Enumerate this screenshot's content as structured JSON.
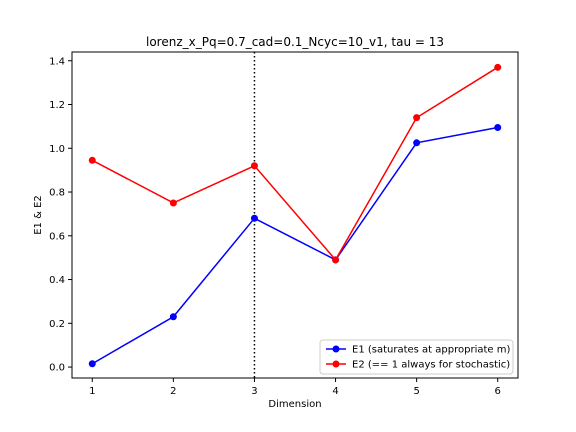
{
  "chart_data": {
    "type": "line",
    "title": "lorenz_x_Pq=0.7_cad=0.1_Ncyc=10_v1, tau = 13",
    "xlabel": "Dimension",
    "ylabel": "E1 & E2",
    "x": [
      1,
      2,
      3,
      4,
      5,
      6
    ],
    "xlim": [
      0.75,
      6.25
    ],
    "ylim": [
      -0.05,
      1.44
    ],
    "xticks": [
      1,
      2,
      3,
      4,
      5,
      6
    ],
    "yticks": [
      0.0,
      0.2,
      0.4,
      0.6,
      0.8,
      1.0,
      1.2,
      1.4
    ],
    "ytick_labels": [
      "0.0",
      "0.2",
      "0.4",
      "0.6",
      "0.8",
      "1.0",
      "1.2",
      "1.4"
    ],
    "vline": {
      "x": 3,
      "style": "dotted",
      "color": "#000000"
    },
    "legend_position": "lower-right",
    "grid": false,
    "series": [
      {
        "name": "E1 (saturates at appropriate m)",
        "color": "#0000ff",
        "values": [
          0.015,
          0.23,
          0.68,
          0.49,
          1.025,
          1.095
        ]
      },
      {
        "name": "E2 (== 1 always for stochastic)",
        "color": "#ff0000",
        "values": [
          0.945,
          0.75,
          0.92,
          0.49,
          1.14,
          1.37
        ]
      }
    ]
  }
}
